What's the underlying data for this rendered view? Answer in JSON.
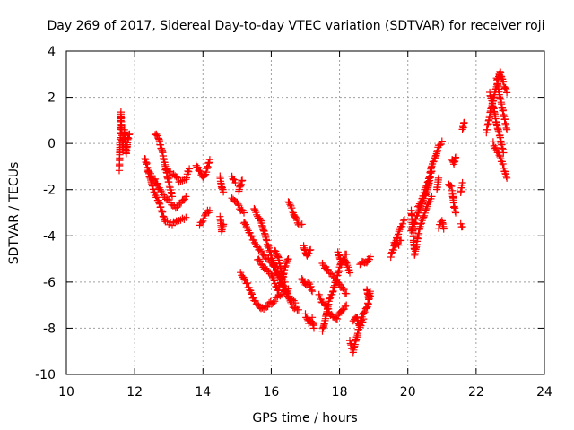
{
  "chart_data": {
    "type": "scatter",
    "title": "Day 269 of 2017, Sidereal Day-to-day VTEC variation (SDTVAR) for receiver roji",
    "xlabel": "GPS time / hours",
    "ylabel": "SDTVAR / TECUs",
    "xlim": [
      10,
      24
    ],
    "ylim": [
      -10,
      4
    ],
    "xticks": [
      10,
      12,
      14,
      16,
      18,
      20,
      22,
      24
    ],
    "yticks": [
      -10,
      -8,
      -6,
      -4,
      -2,
      0,
      2,
      4
    ],
    "grid": true,
    "marker": "+",
    "marker_color": "#ff0000",
    "series": [
      {
        "name": "SDTVAR",
        "segments": [
          [
            [
              11.55,
              -1.1
            ],
            [
              11.6,
              1.3
            ],
            [
              11.65,
              -0.3
            ],
            [
              11.7,
              0.6
            ],
            [
              11.75,
              -0.5
            ],
            [
              11.8,
              0.2
            ],
            [
              11.85,
              0.4
            ]
          ],
          [
            [
              12.3,
              -0.6
            ],
            [
              12.5,
              -1.8
            ],
            [
              12.7,
              -2.5
            ],
            [
              12.9,
              -3.4
            ],
            [
              13.1,
              -3.5
            ],
            [
              13.3,
              -3.3
            ],
            [
              13.5,
              -3.2
            ]
          ],
          [
            [
              12.4,
              -1.2
            ],
            [
              12.6,
              -1.6
            ],
            [
              12.8,
              -2.2
            ],
            [
              13.0,
              -2.5
            ],
            [
              13.2,
              -2.8
            ],
            [
              13.4,
              -2.5
            ],
            [
              13.5,
              -2.3
            ]
          ],
          [
            [
              12.6,
              0.4
            ],
            [
              12.7,
              0.2
            ],
            [
              12.8,
              -0.3
            ],
            [
              12.9,
              -1.0
            ],
            [
              13.0,
              -1.7
            ],
            [
              13.1,
              -2.3
            ]
          ],
          [
            [
              12.9,
              -1.2
            ],
            [
              13.1,
              -1.3
            ],
            [
              13.3,
              -1.6
            ],
            [
              13.5,
              -1.5
            ],
            [
              13.6,
              -1.1
            ]
          ],
          [
            [
              13.8,
              -0.9
            ],
            [
              13.9,
              -1.2
            ],
            [
              14.0,
              -1.5
            ],
            [
              14.1,
              -1.2
            ],
            [
              14.2,
              -0.7
            ]
          ],
          [
            [
              13.9,
              -3.5
            ],
            [
              14.0,
              -3.3
            ],
            [
              14.1,
              -3.0
            ],
            [
              14.2,
              -2.9
            ]
          ],
          [
            [
              14.5,
              -1.4
            ],
            [
              14.55,
              -1.9
            ],
            [
              14.6,
              -2.1
            ]
          ],
          [
            [
              14.5,
              -3.2
            ],
            [
              14.55,
              -3.8
            ],
            [
              14.6,
              -3.5
            ]
          ],
          [
            [
              14.85,
              -2.4
            ],
            [
              15.0,
              -2.6
            ],
            [
              15.1,
              -2.9
            ],
            [
              15.2,
              -3.0
            ]
          ],
          [
            [
              14.85,
              -1.4
            ],
            [
              14.95,
              -1.7
            ]
          ],
          [
            [
              15.05,
              -2.1
            ],
            [
              15.1,
              -1.8
            ],
            [
              15.15,
              -1.6
            ]
          ],
          [
            [
              15.2,
              -3.4
            ],
            [
              15.4,
              -4.0
            ],
            [
              15.6,
              -4.5
            ],
            [
              15.8,
              -4.9
            ],
            [
              16.0,
              -5.1
            ],
            [
              16.2,
              -5.6
            ],
            [
              16.4,
              -6.3
            ],
            [
              16.6,
              -7.0
            ],
            [
              16.8,
              -7.2
            ]
          ],
          [
            [
              15.1,
              -5.6
            ],
            [
              15.3,
              -6.1
            ],
            [
              15.5,
              -6.8
            ],
            [
              15.7,
              -7.2
            ],
            [
              15.9,
              -7.0
            ],
            [
              16.1,
              -6.8
            ],
            [
              16.3,
              -6.5
            ],
            [
              16.5,
              -6.3
            ]
          ],
          [
            [
              15.5,
              -2.8
            ],
            [
              15.7,
              -3.4
            ],
            [
              15.9,
              -4.4
            ],
            [
              16.1,
              -5.3
            ],
            [
              16.3,
              -6.1
            ],
            [
              16.5,
              -6.6
            ],
            [
              16.7,
              -6.9
            ]
          ],
          [
            [
              15.6,
              -5.0
            ],
            [
              15.8,
              -5.4
            ],
            [
              16.0,
              -5.7
            ],
            [
              16.2,
              -6.4
            ],
            [
              16.4,
              -5.4
            ],
            [
              16.5,
              -5.0
            ]
          ],
          [
            [
              16.1,
              -4.6
            ],
            [
              16.2,
              -4.9
            ],
            [
              16.3,
              -5.6
            ],
            [
              16.4,
              -6.0
            ]
          ],
          [
            [
              16.5,
              -2.5
            ],
            [
              16.6,
              -2.8
            ],
            [
              16.7,
              -3.2
            ],
            [
              16.8,
              -3.5
            ],
            [
              16.9,
              -3.5
            ]
          ],
          [
            [
              16.9,
              -5.8
            ],
            [
              17.0,
              -6.1
            ],
            [
              17.1,
              -6.0
            ],
            [
              17.2,
              -6.4
            ]
          ],
          [
            [
              16.95,
              -4.4
            ],
            [
              17.05,
              -4.9
            ],
            [
              17.15,
              -4.6
            ]
          ],
          [
            [
              17.0,
              -7.4
            ],
            [
              17.1,
              -7.8
            ],
            [
              17.2,
              -7.6
            ],
            [
              17.25,
              -8.0
            ]
          ],
          [
            [
              17.4,
              -6.6
            ],
            [
              17.5,
              -6.9
            ],
            [
              17.6,
              -7.0
            ],
            [
              17.7,
              -7.3
            ],
            [
              17.8,
              -7.5
            ],
            [
              17.9,
              -7.6
            ],
            [
              18.0,
              -7.4
            ],
            [
              18.1,
              -7.2
            ],
            [
              18.2,
              -7.0
            ]
          ],
          [
            [
              17.5,
              -5.2
            ],
            [
              17.7,
              -5.6
            ],
            [
              17.9,
              -5.9
            ],
            [
              18.1,
              -6.3
            ],
            [
              18.2,
              -6.5
            ]
          ],
          [
            [
              17.5,
              -8.1
            ],
            [
              17.6,
              -7.5
            ],
            [
              17.7,
              -6.8
            ],
            [
              17.8,
              -6.4
            ],
            [
              17.9,
              -5.9
            ],
            [
              18.0,
              -5.4
            ],
            [
              18.1,
              -5.0
            ],
            [
              18.2,
              -4.8
            ]
          ],
          [
            [
              17.95,
              -4.7
            ],
            [
              18.05,
              -5.2
            ],
            [
              18.15,
              -5.0
            ],
            [
              18.3,
              -5.6
            ]
          ],
          [
            [
              18.3,
              -8.6
            ],
            [
              18.4,
              -9.0
            ],
            [
              18.5,
              -8.4
            ],
            [
              18.6,
              -7.8
            ],
            [
              18.7,
              -7.3
            ],
            [
              18.8,
              -7.1
            ],
            [
              18.9,
              -6.6
            ]
          ],
          [
            [
              18.4,
              -7.7
            ],
            [
              18.5,
              -7.5
            ],
            [
              18.6,
              -7.9
            ],
            [
              18.7,
              -7.6
            ]
          ],
          [
            [
              18.6,
              -5.2
            ],
            [
              18.7,
              -5.1
            ],
            [
              18.8,
              -5.2
            ],
            [
              18.9,
              -4.9
            ]
          ],
          [
            [
              18.8,
              -6.3
            ],
            [
              18.85,
              -6.7
            ],
            [
              18.9,
              -6.4
            ]
          ],
          [
            [
              19.5,
              -4.9
            ],
            [
              19.6,
              -4.5
            ],
            [
              19.7,
              -4.0
            ],
            [
              19.8,
              -3.6
            ],
            [
              19.9,
              -3.3
            ]
          ],
          [
            [
              19.6,
              -4.3
            ],
            [
              19.7,
              -4.4
            ],
            [
              19.8,
              -4.2
            ]
          ],
          [
            [
              20.1,
              -3.8
            ],
            [
              20.2,
              -3.4
            ],
            [
              20.3,
              -3.0
            ],
            [
              20.4,
              -2.6
            ],
            [
              20.5,
              -2.3
            ],
            [
              20.6,
              -1.8
            ],
            [
              20.7,
              -1.2
            ]
          ],
          [
            [
              20.1,
              -2.9
            ],
            [
              20.2,
              -4.8
            ],
            [
              20.3,
              -4.0
            ],
            [
              20.4,
              -3.4
            ],
            [
              20.5,
              -3.0
            ],
            [
              20.6,
              -2.6
            ],
            [
              20.7,
              -2.3
            ]
          ],
          [
            [
              20.3,
              -2.8
            ],
            [
              20.4,
              -2.5
            ],
            [
              20.5,
              -2.0
            ],
            [
              20.6,
              -1.6
            ],
            [
              20.7,
              -1.0
            ],
            [
              20.8,
              -0.6
            ],
            [
              20.9,
              -0.1
            ],
            [
              21.0,
              0.1
            ]
          ],
          [
            [
              20.9,
              -3.6
            ],
            [
              21.0,
              -3.4
            ],
            [
              21.05,
              -3.7
            ]
          ],
          [
            [
              20.85,
              -2.0
            ],
            [
              20.9,
              -1.5
            ]
          ],
          [
            [
              21.3,
              -0.7
            ],
            [
              21.35,
              -0.9
            ],
            [
              21.4,
              -0.6
            ]
          ],
          [
            [
              21.2,
              -1.7
            ],
            [
              21.3,
              -2.0
            ],
            [
              21.35,
              -2.7
            ],
            [
              21.4,
              -3.0
            ]
          ],
          [
            [
              21.55,
              -2.1
            ],
            [
              21.6,
              -1.7
            ]
          ],
          [
            [
              21.55,
              -3.5
            ],
            [
              21.6,
              -3.6
            ]
          ],
          [
            [
              21.6,
              0.6
            ],
            [
              21.65,
              0.9
            ]
          ],
          [
            [
              22.3,
              0.5
            ],
            [
              22.4,
              1.2
            ],
            [
              22.5,
              1.9
            ],
            [
              22.6,
              2.5
            ],
            [
              22.7,
              3.1
            ],
            [
              22.8,
              2.6
            ],
            [
              22.9,
              2.2
            ]
          ],
          [
            [
              22.4,
              2.2
            ],
            [
              22.5,
              1.6
            ],
            [
              22.6,
              0.8
            ],
            [
              22.7,
              0.3
            ],
            [
              22.8,
              -0.4
            ]
          ],
          [
            [
              22.6,
              2.8
            ],
            [
              22.7,
              2.0
            ],
            [
              22.8,
              1.3
            ],
            [
              22.9,
              0.6
            ]
          ],
          [
            [
              22.5,
              0.0
            ],
            [
              22.6,
              -0.3
            ],
            [
              22.7,
              -0.6
            ],
            [
              22.8,
              -1.0
            ],
            [
              22.9,
              -1.5
            ]
          ]
        ]
      }
    ]
  }
}
